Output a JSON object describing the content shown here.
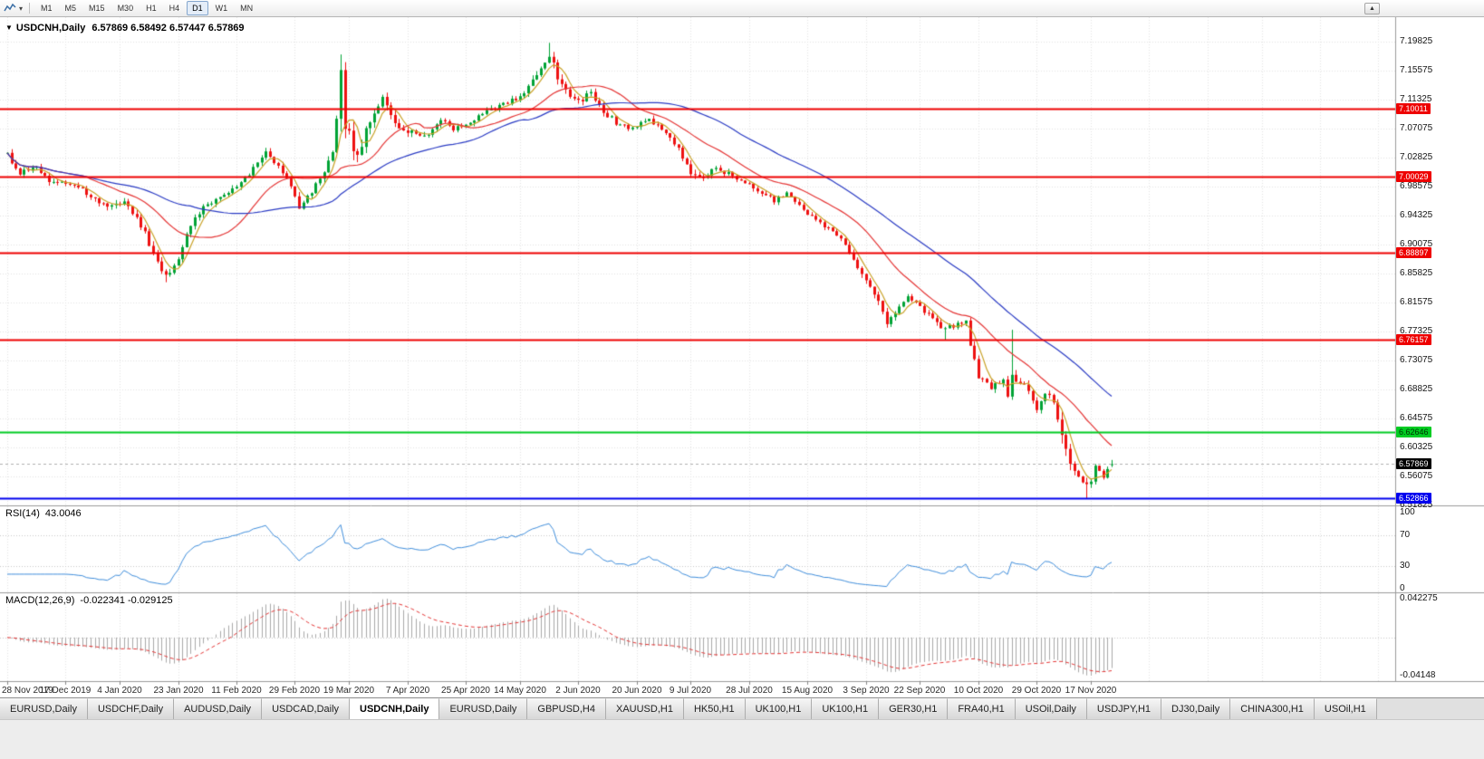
{
  "icons": {
    "chart_menu": "▼",
    "dropdown": "▾",
    "scroll_up": "▲"
  },
  "toolbar": {
    "timeframes": [
      "M1",
      "M5",
      "M15",
      "M30",
      "H1",
      "H4",
      "D1",
      "W1",
      "MN"
    ],
    "active_timeframe": "D1"
  },
  "chart": {
    "title_symbol": "USDCNH,Daily",
    "title_ohlc": "6.57869 6.58492 6.57447 6.57869"
  },
  "chart_data": {
    "type": "candlestick",
    "symbol": "USDCNH",
    "timeframe": "Daily",
    "open": 6.57869,
    "high": 6.58492,
    "low": 6.57447,
    "close": 6.57869,
    "current_price_label": "6.57869",
    "y_ticks": [
      "7.19825",
      "7.15575",
      "7.11325",
      "7.07075",
      "7.02825",
      "6.98575",
      "6.94325",
      "6.90075",
      "6.85825",
      "6.81575",
      "6.77325",
      "6.73075",
      "6.68825",
      "6.64575",
      "6.60325",
      "6.56075",
      "6.51825"
    ],
    "x_labels": [
      "28 Nov 2019",
      "17 Dec 2019",
      "4 Jan 2020",
      "23 Jan 2020",
      "11 Feb 2020",
      "29 Feb 2020",
      "19 Mar 2020",
      "7 Apr 2020",
      "25 Apr 2020",
      "14 May 2020",
      "2 Jun 2020",
      "20 Jun 2020",
      "9 Jul 2020",
      "28 Jul 2020",
      "15 Aug 2020",
      "3 Sep 2020",
      "22 Sep 2020",
      "10 Oct 2020",
      "29 Oct 2020",
      "17 Nov 2020"
    ],
    "hlines": [
      {
        "price": 7.10011,
        "label": "7.10011",
        "color": "#ee0000",
        "text_color": "#ffffff",
        "width": 2
      },
      {
        "price": 7.00029,
        "label": "7.00029",
        "color": "#ee0000",
        "text_color": "#ffffff",
        "width": 2
      },
      {
        "price": 6.88897,
        "label": "6.88897",
        "color": "#ee0000",
        "text_color": "#ffffff",
        "width": 2
      },
      {
        "price": 6.76157,
        "label": "6.76157",
        "color": "#ee0000",
        "text_color": "#ffffff",
        "width": 2
      },
      {
        "price": 6.62646,
        "label": "6.62646",
        "color": "#00cc22",
        "text_color": "#003300",
        "width": 2
      },
      {
        "price": 6.52866,
        "label": "6.52866",
        "color": "#0000ee",
        "text_color": "#ffffff",
        "width": 2
      }
    ],
    "moving_averages": [
      {
        "period": 5,
        "color": "#c9a227"
      },
      {
        "period": 20,
        "color": "#e53535"
      },
      {
        "period": 45,
        "color": "#2a3bc4"
      }
    ],
    "candle_count": 266,
    "price_anchors": [
      [
        0,
        7.033,
        0.016
      ],
      [
        3,
        7.006,
        0.016
      ],
      [
        7,
        7.014,
        0.014
      ],
      [
        10,
        6.996,
        0.014
      ],
      [
        14,
        6.99,
        0.013
      ],
      [
        19,
        6.977,
        0.013
      ],
      [
        24,
        6.953,
        0.015
      ],
      [
        28,
        6.963,
        0.013
      ],
      [
        32,
        6.93,
        0.016
      ],
      [
        36,
        6.876,
        0.018
      ],
      [
        38,
        6.854,
        0.02
      ],
      [
        41,
        6.884,
        0.018
      ],
      [
        44,
        6.928,
        0.016
      ],
      [
        48,
        6.962,
        0.014
      ],
      [
        52,
        6.972,
        0.012
      ],
      [
        55,
        6.985,
        0.012
      ],
      [
        59,
        7.012,
        0.013
      ],
      [
        62,
        7.034,
        0.014
      ],
      [
        65,
        7.018,
        0.013
      ],
      [
        68,
        6.99,
        0.015
      ],
      [
        70,
        6.957,
        0.016
      ],
      [
        73,
        6.976,
        0.014
      ],
      [
        76,
        7.008,
        0.015
      ],
      [
        78,
        7.034,
        0.02
      ],
      [
        79,
        7.08,
        0.05
      ],
      [
        80,
        7.145,
        0.075
      ],
      [
        81,
        7.085,
        0.06
      ],
      [
        82,
        7.06,
        0.04
      ],
      [
        84,
        7.028,
        0.03
      ],
      [
        87,
        7.086,
        0.025
      ],
      [
        90,
        7.112,
        0.022
      ],
      [
        93,
        7.08,
        0.02
      ],
      [
        96,
        7.068,
        0.016
      ],
      [
        100,
        7.058,
        0.014
      ],
      [
        104,
        7.082,
        0.014
      ],
      [
        107,
        7.071,
        0.013
      ],
      [
        110,
        7.079,
        0.013
      ],
      [
        114,
        7.092,
        0.013
      ],
      [
        118,
        7.104,
        0.013
      ],
      [
        123,
        7.118,
        0.014
      ],
      [
        126,
        7.14,
        0.016
      ],
      [
        129,
        7.164,
        0.02
      ],
      [
        130,
        7.176,
        0.026
      ],
      [
        132,
        7.147,
        0.02
      ],
      [
        135,
        7.12,
        0.016
      ],
      [
        137,
        7.11,
        0.015
      ],
      [
        140,
        7.124,
        0.015
      ],
      [
        143,
        7.096,
        0.014
      ],
      [
        146,
        7.08,
        0.013
      ],
      [
        149,
        7.071,
        0.012
      ],
      [
        151,
        7.076,
        0.012
      ],
      [
        154,
        7.084,
        0.012
      ],
      [
        158,
        7.064,
        0.013
      ],
      [
        161,
        7.042,
        0.014
      ],
      [
        164,
        7.006,
        0.018
      ],
      [
        167,
        6.996,
        0.015
      ],
      [
        170,
        7.014,
        0.013
      ],
      [
        173,
        7.004,
        0.012
      ],
      [
        176,
        6.995,
        0.012
      ],
      [
        178,
        6.991,
        0.012
      ],
      [
        181,
        6.976,
        0.012
      ],
      [
        184,
        6.966,
        0.012
      ],
      [
        187,
        6.974,
        0.012
      ],
      [
        190,
        6.956,
        0.012
      ],
      [
        192,
        6.946,
        0.012
      ],
      [
        195,
        6.931,
        0.012
      ],
      [
        198,
        6.921,
        0.012
      ],
      [
        201,
        6.9,
        0.014
      ],
      [
        203,
        6.877,
        0.016
      ],
      [
        205,
        6.856,
        0.016
      ],
      [
        207,
        6.84,
        0.015
      ],
      [
        210,
        6.802,
        0.016
      ],
      [
        211,
        6.78,
        0.016
      ],
      [
        213,
        6.802,
        0.015
      ],
      [
        216,
        6.826,
        0.015
      ],
      [
        219,
        6.81,
        0.014
      ],
      [
        222,
        6.792,
        0.014
      ],
      [
        225,
        6.776,
        0.015
      ],
      [
        228,
        6.786,
        0.013
      ],
      [
        230,
        6.79,
        0.013
      ],
      [
        231,
        6.746,
        0.03
      ],
      [
        233,
        6.706,
        0.02
      ],
      [
        236,
        6.692,
        0.016
      ],
      [
        239,
        6.702,
        0.015
      ],
      [
        240,
        6.678,
        0.016
      ],
      [
        241,
        6.716,
        0.045
      ],
      [
        242,
        6.702,
        0.02
      ],
      [
        245,
        6.687,
        0.015
      ],
      [
        246,
        6.676,
        0.015
      ],
      [
        247,
        6.657,
        0.016
      ],
      [
        249,
        6.686,
        0.016
      ],
      [
        251,
        6.666,
        0.016
      ],
      [
        253,
        6.617,
        0.035
      ],
      [
        255,
        6.586,
        0.025
      ],
      [
        257,
        6.561,
        0.02
      ],
      [
        259,
        6.547,
        0.018
      ],
      [
        260,
        6.556,
        0.016
      ],
      [
        261,
        6.576,
        0.015
      ],
      [
        262,
        6.566,
        0.013
      ],
      [
        263,
        6.557,
        0.013
      ],
      [
        264,
        6.572,
        0.012
      ],
      [
        265,
        6.5787,
        0.01
      ]
    ],
    "key_extremes": [
      {
        "i": 38,
        "l": 6.8455
      },
      {
        "i": 80,
        "h": 7.1652
      },
      {
        "i": 130,
        "h": 7.1965
      },
      {
        "i": 225,
        "l": 6.7609
      },
      {
        "i": 241,
        "h": 6.7758
      },
      {
        "i": 259,
        "l": 6.5289
      }
    ]
  },
  "rsi": {
    "label": "RSI(14)",
    "value": "43.0046",
    "levels": [
      "100",
      "70",
      "30",
      "0"
    ],
    "line_color": "#3f8edc"
  },
  "macd": {
    "label": "MACD(12,26,9)",
    "values": "-0.022341 -0.029125",
    "scale_top": "0.042275",
    "scale_bottom": "-0.04148",
    "hist_color": "#a9a9a9",
    "signal_color": "#e53535"
  },
  "tabs": {
    "items": [
      "EURUSD,Daily",
      "USDCHF,Daily",
      "AUDUSD,Daily",
      "USDCAD,Daily",
      "USDCNH,Daily",
      "EURUSD,Daily",
      "GBPUSD,H4",
      "XAUUSD,H1",
      "HK50,H1",
      "UK100,H1",
      "UK100,H1",
      "GER30,H1",
      "FRA40,H1",
      "USOil,Daily",
      "USDJPY,H1",
      "DJ30,Daily",
      "CHINA300,H1",
      "USOil,H1"
    ],
    "active_index": 4
  },
  "colors": {
    "grid": "#e3e3e3",
    "candle_up": "#00a335",
    "candle_down": "#ee1111",
    "separator": "#9a9a9a",
    "bid_line": "#b0b0b0"
  }
}
